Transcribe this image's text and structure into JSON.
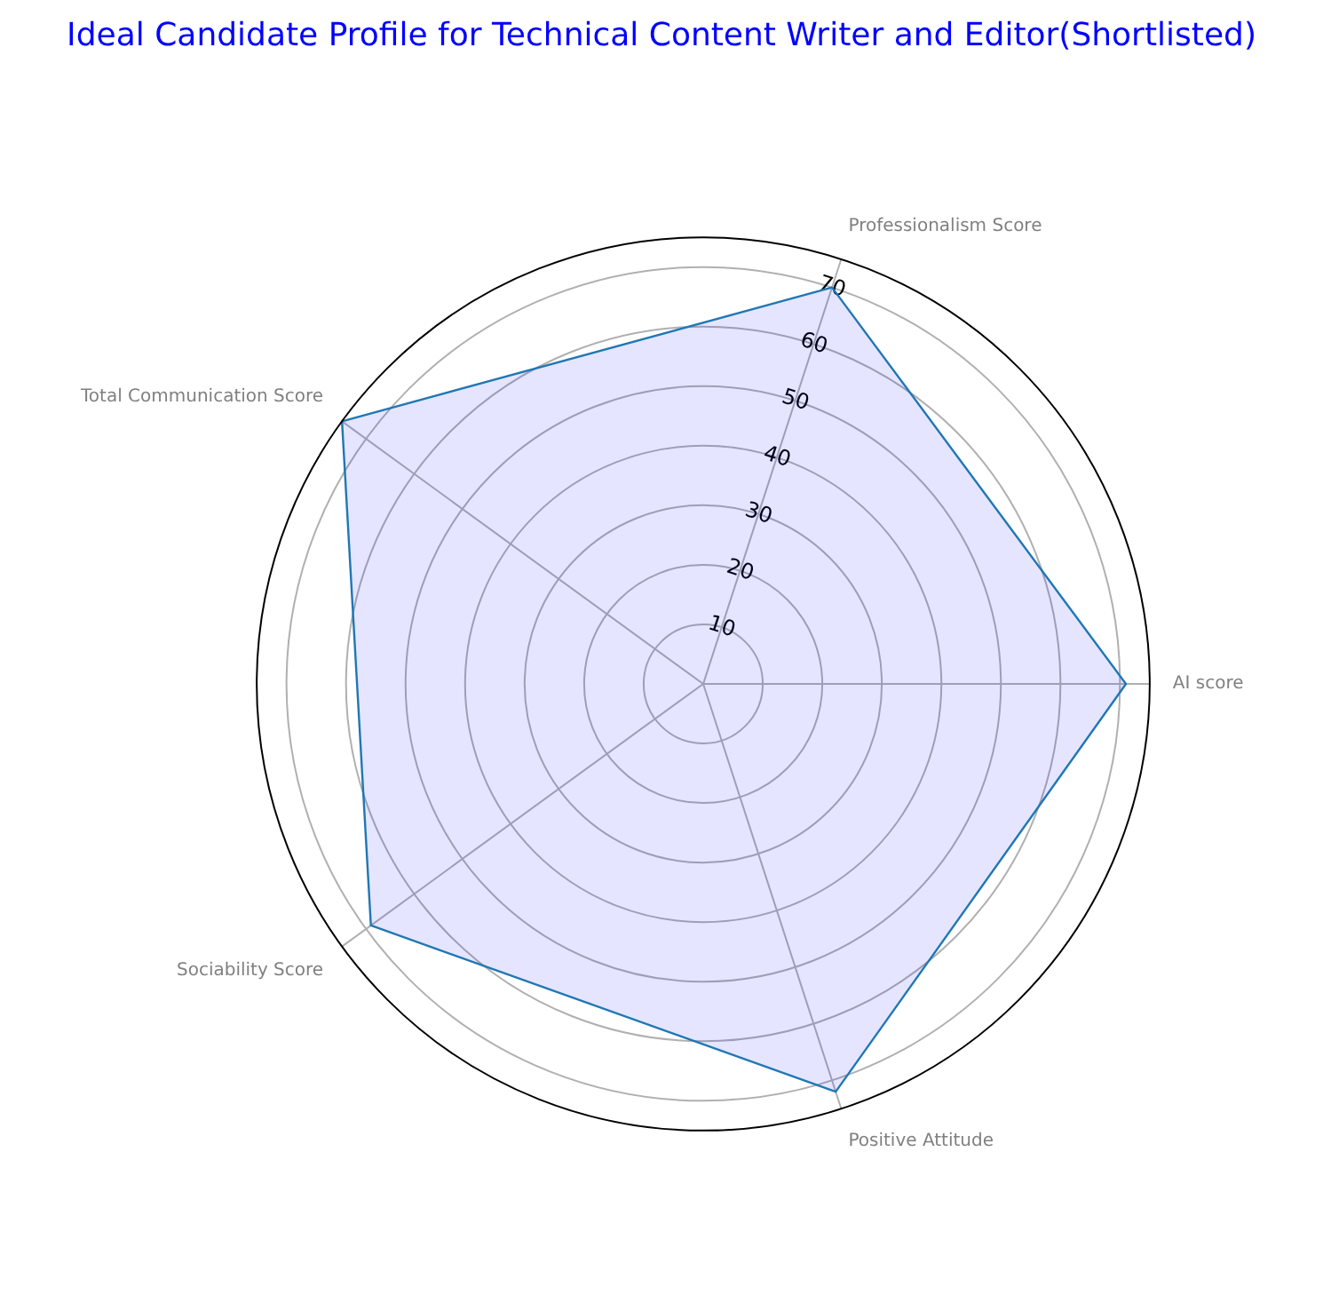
{
  "chart_data": {
    "type": "radar",
    "title": "Ideal Candidate Profile for Technical Content Writer and Editor(Shortlisted)",
    "categories": [
      "Professionalism Score",
      "AI score",
      "Positive Attitude",
      "Sociability Score",
      "Total Communication Score"
    ],
    "series": [
      {
        "color": "#1f77b4",
        "values": [
          70,
          71,
          72,
          69,
          75
        ]
      }
    ],
    "ylim": [
      0,
      75
    ],
    "yticks": [
      10,
      20,
      30,
      40,
      50,
      60,
      70
    ],
    "grid": true,
    "legend": false,
    "marker": "none"
  }
}
